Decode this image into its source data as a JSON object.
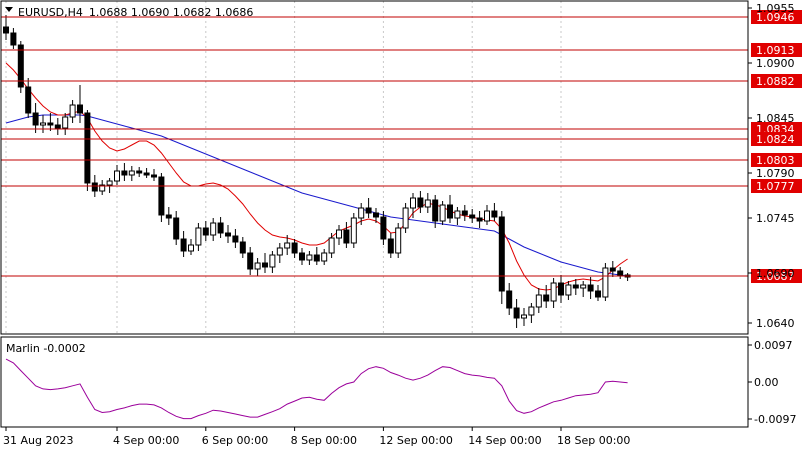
{
  "header": {
    "symbol": "EURUSD,H4",
    "ohlc": "1.0688 1.0690 1.0682 1.0686"
  },
  "indicator": {
    "label": "Marlin -0.0002"
  },
  "colors": {
    "candle": "#000000",
    "ma_fast": "#e00000",
    "ma_slow": "#1a1acd",
    "level_line": "#c00000",
    "level_label_bg": "#e00000",
    "osc": "#9b009b",
    "grid": "#c8c8c8"
  },
  "chart_data": {
    "type": "candlestick",
    "price_axis": {
      "ticks": [
        1.0955,
        1.09,
        1.0845,
        1.079,
        1.0745,
        1.069,
        1.064
      ],
      "tick_labels": [
        "1.0955",
        "1.0900",
        "1.0845",
        "1.0790",
        "1.0745",
        "1.0690",
        "1.0640"
      ],
      "range": [
        1.0629,
        1.0962
      ]
    },
    "osc_axis": {
      "ticks": [
        0.0097,
        0.0,
        -0.0097
      ],
      "tick_labels": [
        "0.0097",
        "0.00",
        "-0.0097"
      ],
      "range": [
        -0.0118,
        0.0118
      ]
    },
    "time_axis": {
      "labels": [
        "31 Aug 2023",
        "4 Sep 00:00",
        "6 Sep 00:00",
        "8 Sep 00:00",
        "12 Sep 00:00",
        "14 Sep 00:00",
        "18 Sep 00:00"
      ],
      "label_index": [
        0,
        15,
        27,
        39,
        51,
        63,
        75
      ]
    },
    "levels": [
      1.0946,
      1.0913,
      1.0882,
      1.0834,
      1.0824,
      1.0803,
      1.0777,
      1.0687
    ],
    "level_labels": [
      "1.0946",
      "1.0913",
      "1.0882",
      "1.0834",
      "1.0824",
      "1.0803",
      "1.0777",
      "1.0687"
    ],
    "candles": [
      [
        1.0936,
        1.0948,
        1.0923,
        1.093
      ],
      [
        1.093,
        1.0935,
        1.0914,
        1.0918
      ],
      [
        1.0918,
        1.0922,
        1.087,
        1.0876
      ],
      [
        1.0876,
        1.0885,
        1.0845,
        1.085
      ],
      [
        1.085,
        1.086,
        1.083,
        1.0838
      ],
      [
        1.0838,
        1.0848,
        1.083,
        1.084
      ],
      [
        1.084,
        1.085,
        1.0832,
        1.0838
      ],
      [
        1.0838,
        1.0845,
        1.0828,
        1.0835
      ],
      [
        1.0835,
        1.085,
        1.0828,
        1.0846
      ],
      [
        1.0846,
        1.0863,
        1.084,
        1.0858
      ],
      [
        1.0858,
        1.0878,
        1.084,
        1.085
      ],
      [
        1.085,
        1.0853,
        1.0772,
        1.078
      ],
      [
        1.078,
        1.0788,
        1.0766,
        1.0772
      ],
      [
        1.0772,
        1.0783,
        1.0768,
        1.0778
      ],
      [
        1.0778,
        1.0785,
        1.077,
        1.0782
      ],
      [
        1.0782,
        1.0798,
        1.0778,
        1.0792
      ],
      [
        1.0792,
        1.08,
        1.0782,
        1.0788
      ],
      [
        1.0788,
        1.0797,
        1.0782,
        1.0792
      ],
      [
        1.0792,
        1.0796,
        1.0786,
        1.079
      ],
      [
        1.079,
        1.0795,
        1.0785,
        1.0788
      ],
      [
        1.0788,
        1.0794,
        1.0782,
        1.0786
      ],
      [
        1.0786,
        1.079,
        1.0741,
        1.0748
      ],
      [
        1.0748,
        1.0756,
        1.0738,
        1.0745
      ],
      [
        1.0745,
        1.0752,
        1.0718,
        1.0724
      ],
      [
        1.0724,
        1.0732,
        1.0706,
        1.0712
      ],
      [
        1.0712,
        1.0724,
        1.0708,
        1.0718
      ],
      [
        1.0718,
        1.074,
        1.0712,
        1.0735
      ],
      [
        1.0735,
        1.0742,
        1.0722,
        1.0728
      ],
      [
        1.0728,
        1.0745,
        1.0722,
        1.074
      ],
      [
        1.074,
        1.0746,
        1.0725,
        1.073
      ],
      [
        1.073,
        1.0738,
        1.072,
        1.0727
      ],
      [
        1.0727,
        1.0734,
        1.0715,
        1.0721
      ],
      [
        1.0721,
        1.0726,
        1.0705,
        1.071
      ],
      [
        1.071,
        1.0716,
        1.0688,
        1.0694
      ],
      [
        1.0694,
        1.0705,
        1.0687,
        1.07
      ],
      [
        1.07,
        1.071,
        1.069,
        1.0696
      ],
      [
        1.0696,
        1.0712,
        1.069,
        1.0708
      ],
      [
        1.0708,
        1.072,
        1.07,
        1.0715
      ],
      [
        1.0715,
        1.0728,
        1.0708,
        1.072
      ],
      [
        1.072,
        1.0724,
        1.0705,
        1.071
      ],
      [
        1.071,
        1.0715,
        1.0698,
        1.0703
      ],
      [
        1.0703,
        1.0712,
        1.0698,
        1.0708
      ],
      [
        1.0708,
        1.0716,
        1.0698,
        1.0702
      ],
      [
        1.0702,
        1.0714,
        1.0698,
        1.071
      ],
      [
        1.071,
        1.073,
        1.0705,
        1.0725
      ],
      [
        1.0725,
        1.0738,
        1.0718,
        1.0733
      ],
      [
        1.0733,
        1.0741,
        1.0715,
        1.072
      ],
      [
        1.072,
        1.075,
        1.0715,
        1.0745
      ],
      [
        1.0745,
        1.076,
        1.0738,
        1.0755
      ],
      [
        1.0755,
        1.0765,
        1.0745,
        1.075
      ],
      [
        1.075,
        1.0755,
        1.074,
        1.0746
      ],
      [
        1.0746,
        1.0752,
        1.0718,
        1.0724
      ],
      [
        1.0724,
        1.073,
        1.0705,
        1.071
      ],
      [
        1.071,
        1.074,
        1.0705,
        1.0735
      ],
      [
        1.0735,
        1.076,
        1.073,
        1.0755
      ],
      [
        1.0755,
        1.077,
        1.0745,
        1.0765
      ],
      [
        1.0765,
        1.0772,
        1.075,
        1.0756
      ],
      [
        1.0756,
        1.077,
        1.075,
        1.0763
      ],
      [
        1.0763,
        1.0768,
        1.0735,
        1.0742
      ],
      [
        1.0742,
        1.0762,
        1.0738,
        1.0758
      ],
      [
        1.0758,
        1.0768,
        1.074,
        1.0745
      ],
      [
        1.0745,
        1.0756,
        1.0738,
        1.0752
      ],
      [
        1.0752,
        1.0758,
        1.0742,
        1.0748
      ],
      [
        1.0748,
        1.0754,
        1.074,
        1.0745
      ],
      [
        1.0745,
        1.0752,
        1.0735,
        1.0742
      ],
      [
        1.0742,
        1.0758,
        1.0738,
        1.0752
      ],
      [
        1.0752,
        1.076,
        1.0742,
        1.0746
      ],
      [
        1.0746,
        1.0752,
        1.0659,
        1.0672
      ],
      [
        1.0672,
        1.068,
        1.0648,
        1.0655
      ],
      [
        1.0655,
        1.0664,
        1.0635,
        1.0645
      ],
      [
        1.0645,
        1.0655,
        1.0637,
        1.0648
      ],
      [
        1.0648,
        1.066,
        1.064,
        1.0656
      ],
      [
        1.0656,
        1.0675,
        1.065,
        1.0668
      ],
      [
        1.0668,
        1.0678,
        1.0655,
        1.0662
      ],
      [
        1.0662,
        1.0685,
        1.0655,
        1.068
      ],
      [
        1.068,
        1.0688,
        1.066,
        1.0668
      ],
      [
        1.0668,
        1.0682,
        1.0663,
        1.0678
      ],
      [
        1.0678,
        1.0684,
        1.0668,
        1.0675
      ],
      [
        1.0675,
        1.0682,
        1.0666,
        1.0678
      ],
      [
        1.0678,
        1.0686,
        1.0664,
        1.0672
      ],
      [
        1.0672,
        1.0678,
        1.0662,
        1.0666
      ],
      [
        1.0666,
        1.07,
        1.0662,
        1.0695
      ],
      [
        1.0695,
        1.0702,
        1.0686,
        1.0692
      ],
      [
        1.0692,
        1.0696,
        1.0684,
        1.0688
      ],
      [
        1.0688,
        1.069,
        1.0682,
        1.0686
      ]
    ],
    "ma_fast": [
      1.09,
      1.0893,
      1.0884,
      1.0874,
      1.0865,
      1.0857,
      1.0851,
      1.0848,
      1.0848,
      1.085,
      1.0852,
      1.0845,
      1.0832,
      1.0822,
      1.0815,
      1.0812,
      1.0814,
      1.0818,
      1.0822,
      1.0822,
      1.0818,
      1.081,
      1.08,
      1.079,
      1.0781,
      1.0777,
      1.0777,
      1.0779,
      1.078,
      1.0778,
      1.0774,
      1.0767,
      1.0759,
      1.0749,
      1.074,
      1.0733,
      1.0728,
      1.0726,
      1.0725,
      1.0723,
      1.072,
      1.0718,
      1.0718,
      1.072,
      1.0726,
      1.0732,
      1.0735,
      1.0738,
      1.0742,
      1.0744,
      1.0742,
      1.0737,
      1.073,
      1.0731,
      1.074,
      1.075,
      1.0756,
      1.076,
      1.0758,
      1.0756,
      1.0752,
      1.0749,
      1.0747,
      1.0746,
      1.0744,
      1.0743,
      1.0742,
      1.0734,
      1.072,
      1.0702,
      1.0688,
      1.0678,
      1.0674,
      1.0673,
      1.0674,
      1.0678,
      1.0681,
      1.0683,
      1.0684,
      1.0683,
      1.0682,
      1.0686,
      1.0693,
      1.0699,
      1.0704
    ],
    "ma_slow": [
      1.084,
      1.0842,
      1.0844,
      1.0846,
      1.0847,
      1.0848,
      1.0848,
      1.0848,
      1.0848,
      1.0848,
      1.0848,
      1.0847,
      1.0845,
      1.0843,
      1.0841,
      1.0839,
      1.0837,
      1.0835,
      1.0833,
      1.0831,
      1.0829,
      1.0827,
      1.0824,
      1.0821,
      1.0818,
      1.0815,
      1.0812,
      1.0809,
      1.0806,
      1.0803,
      1.08,
      1.0797,
      1.0794,
      1.0791,
      1.0788,
      1.0785,
      1.0782,
      1.0779,
      1.0776,
      1.0773,
      1.077,
      1.0768,
      1.0766,
      1.0764,
      1.0762,
      1.076,
      1.0758,
      1.0756,
      1.0754,
      1.0752,
      1.075,
      1.0748,
      1.0746,
      1.0745,
      1.0744,
      1.0743,
      1.0742,
      1.0741,
      1.074,
      1.0739,
      1.0738,
      1.0737,
      1.0736,
      1.0735,
      1.0734,
      1.0733,
      1.0732,
      1.0728,
      1.0724,
      1.072,
      1.0716,
      1.0713,
      1.071,
      1.0707,
      1.0704,
      1.0701,
      1.0699,
      1.0697,
      1.0695,
      1.0693,
      1.0691,
      1.069,
      1.0689,
      1.0688,
      1.0687
    ],
    "oscillator": [
      0.006,
      0.005,
      0.003,
      0.001,
      -0.001,
      -0.0018,
      -0.002,
      -0.0018,
      -0.0015,
      -0.001,
      -0.0005,
      -0.004,
      -0.0072,
      -0.008,
      -0.0078,
      -0.0072,
      -0.0068,
      -0.0062,
      -0.0058,
      -0.0058,
      -0.006,
      -0.0068,
      -0.008,
      -0.009,
      -0.0096,
      -0.0096,
      -0.0088,
      -0.0082,
      -0.0074,
      -0.0076,
      -0.008,
      -0.0084,
      -0.0088,
      -0.0092,
      -0.0092,
      -0.0085,
      -0.0078,
      -0.007,
      -0.0058,
      -0.005,
      -0.0042,
      -0.004,
      -0.0045,
      -0.0048,
      -0.003,
      -0.0015,
      -0.0005,
      0.0,
      0.0022,
      0.0035,
      0.004,
      0.0036,
      0.0025,
      0.0018,
      0.001,
      0.0005,
      0.001,
      0.0018,
      0.003,
      0.004,
      0.0038,
      0.003,
      0.0022,
      0.0018,
      0.0016,
      0.0012,
      0.001,
      -0.001,
      -0.005,
      -0.0075,
      -0.0082,
      -0.0078,
      -0.0068,
      -0.006,
      -0.0052,
      -0.0048,
      -0.0042,
      -0.0036,
      -0.0034,
      -0.0032,
      -0.0028,
      0.0,
      0.0002,
      0.0,
      -0.0002
    ]
  }
}
